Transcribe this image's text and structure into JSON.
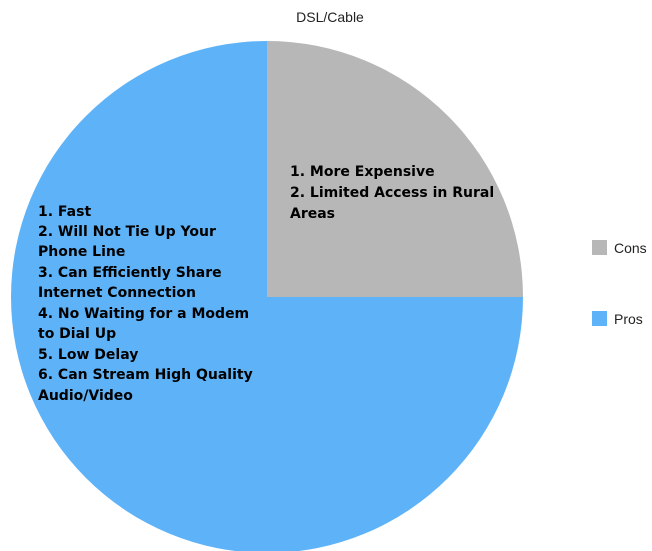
{
  "chart_data": {
    "type": "pie",
    "title": "DSL/Cable",
    "legend_position": "right",
    "slices": [
      {
        "name": "Cons",
        "value": 25,
        "color": "#b7b7b7",
        "annotation_lines": [
          "1.  More Expensive",
          "2.  Limited Access in Rural",
          "Areas"
        ]
      },
      {
        "name": "Pros",
        "value": 75,
        "color": "#5eb3f8",
        "annotation_lines": [
          "1.  Fast",
          "2.  Will Not Tie Up Your",
          "Phone Line",
          "3.  Can Efficiently Share",
          "Internet Connection",
          "4.  No Waiting for a Modem",
          "to Dial Up",
          "5.  Low Delay",
          "6.  Can Stream High Quality",
          "Audio/Video"
        ]
      }
    ]
  }
}
